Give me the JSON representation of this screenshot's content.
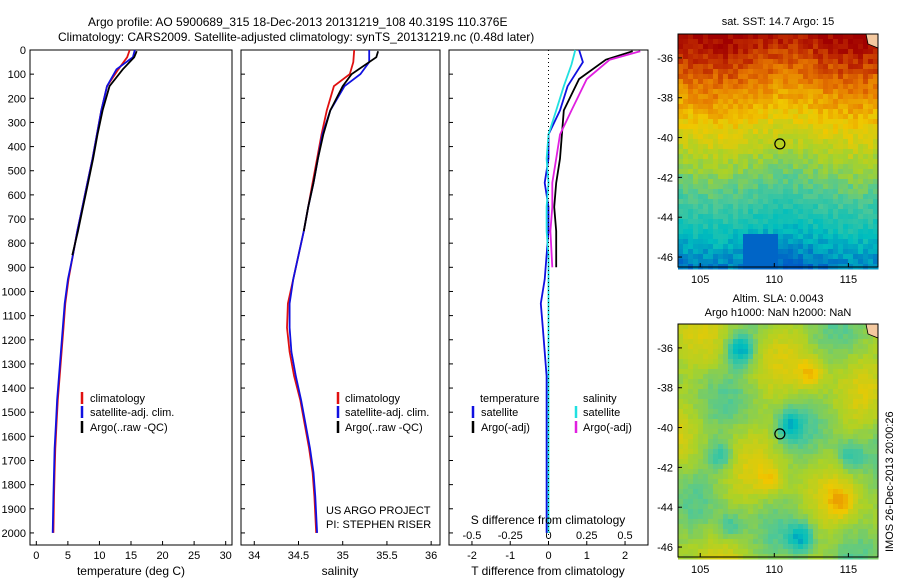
{
  "header": {
    "line1": "Argo profile: AO 5900689_315 18-Dec-2013 20131219_108 40.319S 110.376E",
    "line2": "Climatology: CARS2009. Satellite-adjusted climatology: synTS_20131219.nc (0.48d later)"
  },
  "credit": {
    "line1": "US ARGO PROJECT",
    "line2": "PI: STEPHEN RISER"
  },
  "stamp": "IMOS 26-Dec-2013 20:00:26",
  "colors": {
    "climatology": "#e01010",
    "satellite": "#1010e0",
    "argo": "#000000",
    "sat_salinity": "#20e0e0",
    "argo_salinity": "#e020e0"
  },
  "chart_data": [
    {
      "type": "line",
      "name": "temperature",
      "xlabel": "temperature (deg C)",
      "xlim": [
        -1,
        31
      ],
      "xticks": [
        "0",
        "5",
        "10",
        "15",
        "20",
        "25",
        "30"
      ],
      "ylim": [
        2050,
        0
      ],
      "yticks": [
        "0",
        "100",
        "200",
        "300",
        "400",
        "500",
        "600",
        "700",
        "800",
        "900",
        "1000",
        "1100",
        "1200",
        "1300",
        "1400",
        "1500",
        "1600",
        "1700",
        "1800",
        "1900",
        "2000"
      ],
      "legend": [
        "climatology",
        "satellite-adj. clim.",
        "Argo(..raw -QC)"
      ],
      "series": [
        {
          "name": "climatology",
          "x": [
            14.8,
            14.4,
            13.0,
            11.2,
            10.3,
            9.6,
            8.9,
            8.1,
            7.3,
            6.5,
            5.8,
            5.1,
            4.6,
            4.3,
            4.0,
            3.7,
            3.4,
            3.2,
            3.0,
            2.9,
            2.8,
            2.7
          ],
          "y": [
            0,
            30,
            80,
            150,
            250,
            350,
            450,
            550,
            650,
            750,
            850,
            950,
            1050,
            1150,
            1250,
            1350,
            1450,
            1550,
            1650,
            1750,
            1850,
            2000
          ]
        },
        {
          "name": "satellite-adj. clim.",
          "x": [
            15.6,
            15.3,
            12.7,
            11.2,
            10.3,
            9.6,
            8.9,
            8.1,
            7.3,
            6.5,
            5.8,
            5.0,
            4.5,
            4.2,
            3.9,
            3.6,
            3.3,
            3.1,
            2.9,
            2.8,
            2.7,
            2.6
          ],
          "y": [
            0,
            30,
            80,
            150,
            250,
            350,
            450,
            550,
            650,
            750,
            850,
            950,
            1050,
            1150,
            1250,
            1350,
            1450,
            1550,
            1650,
            1750,
            1850,
            2000
          ]
        },
        {
          "name": "Argo(..raw -QC)",
          "x": [
            15.9,
            15.5,
            13.7,
            11.6,
            10.5,
            9.7,
            9.0,
            8.2,
            7.4,
            6.6,
            5.7
          ],
          "y": [
            5,
            30,
            80,
            150,
            250,
            350,
            450,
            550,
            650,
            750,
            850
          ]
        }
      ]
    },
    {
      "type": "line",
      "name": "salinity",
      "xlabel": "salinity",
      "xlim": [
        33.85,
        36.1
      ],
      "xticks": [
        "34",
        "34.5",
        "35",
        "35.5",
        "36"
      ],
      "ylim": [
        2050,
        0
      ],
      "legend": [
        "climatology",
        "satellite-adj. clim.",
        "Argo(..raw -QC)"
      ],
      "series": [
        {
          "name": "climatology",
          "x": [
            35.13,
            35.12,
            35.08,
            34.9,
            34.82,
            34.76,
            34.71,
            34.66,
            34.61,
            34.56,
            34.5,
            34.44,
            34.38,
            34.37,
            34.4,
            34.45,
            34.52,
            34.57,
            34.62,
            34.66,
            34.68,
            34.7
          ],
          "y": [
            0,
            50,
            100,
            150,
            250,
            350,
            450,
            550,
            650,
            750,
            850,
            950,
            1050,
            1150,
            1250,
            1350,
            1450,
            1550,
            1650,
            1750,
            1850,
            2000
          ]
        },
        {
          "name": "satellite-adj. clim.",
          "x": [
            35.3,
            35.3,
            35.2,
            35.02,
            34.86,
            34.77,
            34.72,
            34.67,
            34.61,
            34.56,
            34.5,
            34.44,
            34.4,
            34.4,
            34.42,
            34.47,
            34.53,
            34.58,
            34.63,
            34.67,
            34.69,
            34.71
          ],
          "y": [
            0,
            50,
            100,
            150,
            250,
            350,
            450,
            550,
            650,
            750,
            850,
            950,
            1050,
            1150,
            1250,
            1350,
            1450,
            1550,
            1650,
            1750,
            1850,
            2000
          ]
        },
        {
          "name": "Argo(..raw -QC)",
          "x": [
            35.4,
            35.38,
            35.1,
            35.0,
            34.86,
            34.78,
            34.72,
            34.67,
            34.61,
            34.56
          ],
          "y": [
            5,
            30,
            100,
            150,
            250,
            350,
            450,
            550,
            650,
            750
          ]
        }
      ]
    },
    {
      "type": "line",
      "name": "difference",
      "xlabel": "T difference from climatology",
      "xlabel_top": "S difference from climatology",
      "xlim": [
        -2.6,
        2.6
      ],
      "xticks": [
        "-2",
        "-1",
        "0",
        "1",
        "2"
      ],
      "xticks_top": [
        "-0.5",
        "-0.25",
        "0",
        "0.25",
        "0.5"
      ],
      "ylim": [
        2050,
        0
      ],
      "legend_temperature": [
        "temperature",
        "satellite",
        "Argo(-adj)"
      ],
      "legend_salinity": [
        "salinity",
        "satellite",
        "Argo(-adj)"
      ],
      "series": [
        {
          "name": "temperature satellite",
          "x": [
            0.8,
            0.9,
            0.5,
            0.3,
            0.0,
            0.0,
            -0.1,
            0.0,
            0.0,
            -0.05,
            -0.1,
            -0.2,
            -0.15,
            -0.1,
            -0.05,
            -0.05,
            -0.05,
            -0.05,
            -0.05,
            -0.05,
            -0.05
          ],
          "y": [
            0,
            50,
            150,
            250,
            350,
            450,
            550,
            650,
            750,
            850,
            950,
            1050,
            1150,
            1250,
            1350,
            1450,
            1550,
            1650,
            1750,
            1850,
            2000
          ]
        },
        {
          "name": "temperature Argo(-adj)",
          "x": [
            2.2,
            1.5,
            0.8,
            0.4,
            0.35,
            0.3,
            0.2,
            0.15,
            0.2,
            0.2
          ],
          "y": [
            5,
            40,
            120,
            250,
            350,
            450,
            550,
            650,
            750,
            900
          ]
        },
        {
          "name": "salinity satellite",
          "x": [
            0.7,
            0.6,
            0.4,
            0.2,
            0.0,
            -0.05,
            0.0,
            -0.05,
            -0.05,
            0.0,
            0.0,
            0.0,
            0.0,
            0.0,
            0.0
          ],
          "y": [
            0,
            60,
            150,
            250,
            350,
            450,
            550,
            650,
            750,
            850,
            1000,
            1200,
            1400,
            1700,
            2000
          ]
        },
        {
          "name": "salinity Argo(-adj)",
          "x": [
            2.4,
            1.6,
            1.0,
            0.6,
            0.3,
            0.2,
            0.1,
            0.1,
            0.05,
            0.1
          ],
          "y": [
            5,
            40,
            120,
            250,
            350,
            450,
            550,
            650,
            750,
            900
          ]
        }
      ]
    },
    {
      "type": "heatmap",
      "name": "sst-map",
      "title": "sat. SST: 14.7 Argo: 15",
      "xlim": [
        103.5,
        117
      ],
      "ylim": [
        -46.5,
        -34.8
      ],
      "xticks": [
        "105",
        "110",
        "115"
      ],
      "yticks": [
        "-36",
        "-38",
        "-40",
        "-42",
        "-44",
        "-46"
      ],
      "marker": {
        "lon": 110.376,
        "lat": -40.319
      }
    },
    {
      "type": "heatmap",
      "name": "sla-map",
      "title_line1": "Altim. SLA: 0.0043",
      "title_line2": "Argo h1000: NaN h2000: NaN",
      "xlim": [
        103.5,
        117
      ],
      "ylim": [
        -46.5,
        -34.8
      ],
      "xticks": [
        "105",
        "110",
        "115"
      ],
      "yticks": [
        "-36",
        "-38",
        "-40",
        "-42",
        "-44",
        "-46"
      ],
      "marker": {
        "lon": 110.376,
        "lat": -40.319
      }
    }
  ]
}
